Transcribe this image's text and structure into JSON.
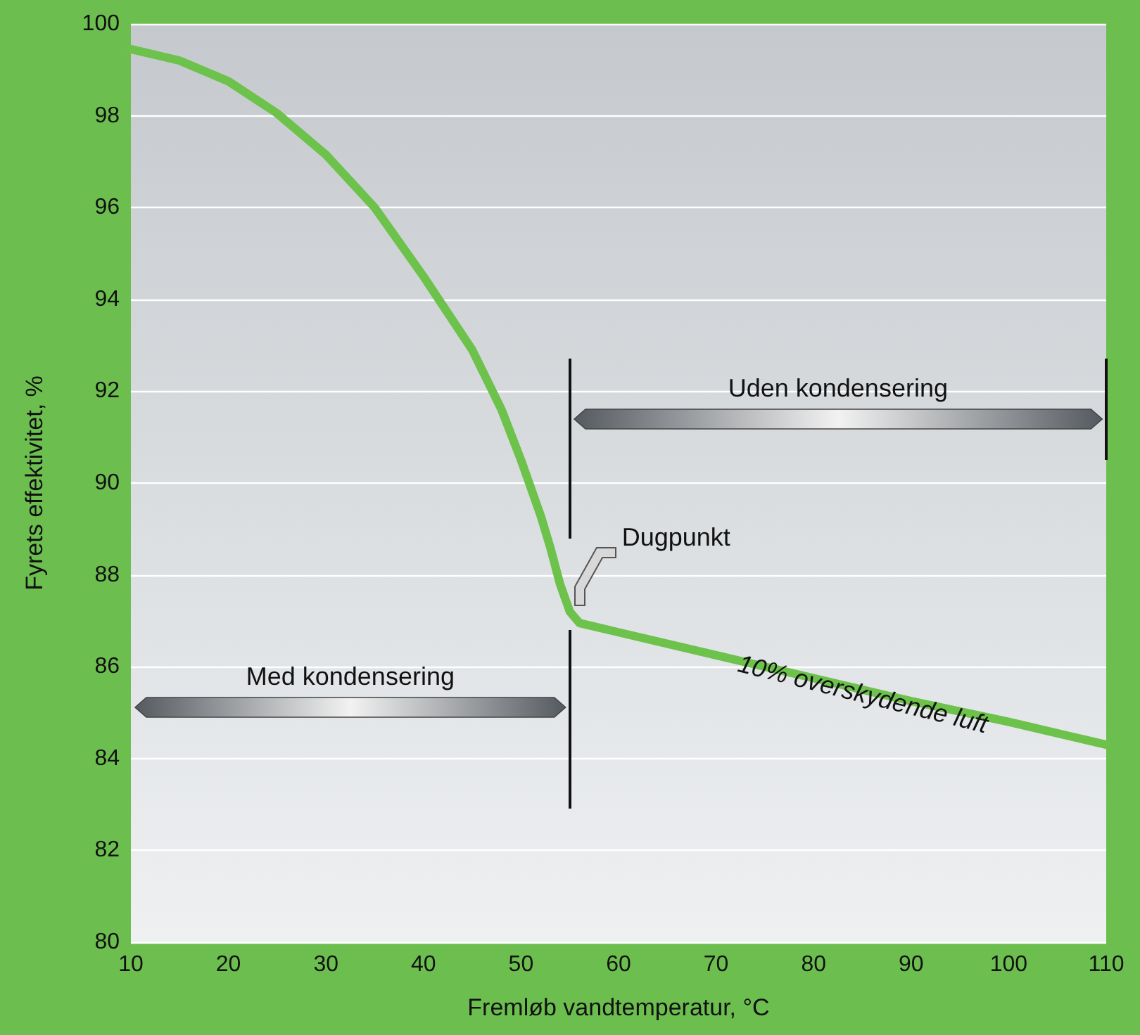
{
  "chart_data": {
    "type": "line",
    "xlabel": "Fremløb vandtemperatur, °C",
    "ylabel": "Fyrets effektivitet, %",
    "series": [
      {
        "color": "#6cc24a",
        "x": [
          10,
          15,
          20,
          25,
          30,
          35,
          40,
          45,
          48,
          50,
          52,
          53,
          54,
          55,
          56,
          60,
          70,
          80,
          90,
          100,
          110
        ],
        "values": [
          99.45,
          99.2,
          98.75,
          98.05,
          97.15,
          96.0,
          94.5,
          92.9,
          91.6,
          90.5,
          89.3,
          88.6,
          87.8,
          87.2,
          86.95,
          86.75,
          86.25,
          85.75,
          85.25,
          84.8,
          84.3
        ]
      }
    ],
    "xlim": [
      10,
      110
    ],
    "xticks": [
      10,
      20,
      30,
      40,
      50,
      60,
      70,
      80,
      90,
      100,
      110
    ],
    "ylim": [
      80,
      100
    ],
    "yticks": [
      80,
      82,
      84,
      86,
      88,
      90,
      92,
      94,
      96,
      98,
      100
    ],
    "grid": "y",
    "marker": "none",
    "line_style": "solid",
    "annotations": [
      "Uden kondensering",
      {
        "text": "Dugpunkt",
        "x": 55,
        "y": 87.2
      },
      "Med kondensering",
      {
        "text": "10% overskydende luft",
        "x": 85,
        "y": 85.4
      }
    ]
  }
}
